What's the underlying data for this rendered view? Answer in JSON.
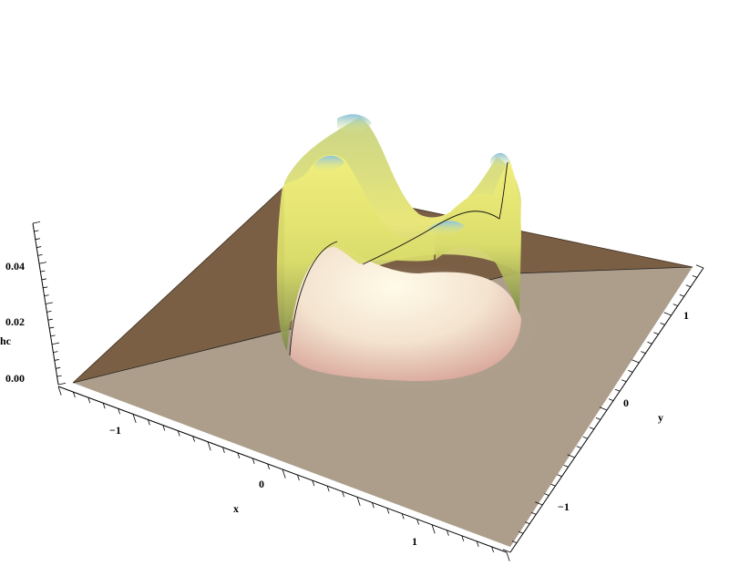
{
  "chart_data": {
    "type": "surface3d",
    "title": "",
    "xlabel": "x",
    "ylabel": "y",
    "zlabel": "hc",
    "x_ticks": [
      "−1",
      "0",
      "1"
    ],
    "y_ticks": [
      "−1",
      "0",
      "1"
    ],
    "z_ticks": [
      "0.00",
      "0.02",
      "0.04"
    ],
    "xlim": [
      -1.6,
      1.6
    ],
    "ylim": [
      -1.6,
      1.6
    ],
    "zlim": [
      0,
      0.05
    ],
    "boxed": false,
    "plane_colors": {
      "back": "#7a5f45",
      "front": "#ad9e8c"
    },
    "surface_colors": {
      "rim_top": "#f1ef7a",
      "rim_shadow": "#9aa55a",
      "dome": "#f8eedb",
      "dome_edge": "#d9aea0"
    },
    "description_values": {
      "ring_radius": 0.6,
      "rim_peak_height": 0.045,
      "plateau_height": 0.0
    }
  }
}
